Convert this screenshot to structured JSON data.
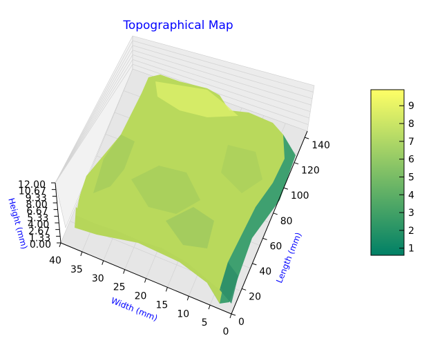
{
  "chart_data": {
    "type": "surface3d",
    "title": "Topographical Map",
    "title_color": "#0000ff",
    "axis_label_color": "#0000ff",
    "colormap": "summer",
    "colormap_colors": [
      "#008066",
      "#ffff66"
    ],
    "x_axis": {
      "label": "Length (mm)",
      "range": [
        0,
        145
      ],
      "ticks": [
        0,
        20,
        40,
        60,
        80,
        100,
        120,
        140
      ],
      "tick_labels": [
        "0",
        "20",
        "40",
        "60",
        "80",
        "100",
        "120",
        "140"
      ]
    },
    "y_axis": {
      "label": "Width (mm)",
      "range": [
        0,
        40
      ],
      "ticks": [
        0,
        5,
        10,
        15,
        20,
        25,
        30,
        35,
        40
      ],
      "tick_labels": [
        "0",
        "5",
        "10",
        "15",
        "20",
        "25",
        "30",
        "35",
        "40"
      ]
    },
    "z_axis": {
      "label": "Height (mm)",
      "range": [
        0,
        12
      ],
      "ticks": [
        0,
        1.33,
        2.67,
        4.0,
        5.33,
        6.67,
        8.0,
        9.33,
        10.67,
        12.0
      ],
      "tick_labels": [
        "0.00",
        "1.33",
        "2.67",
        "4.00",
        "5.33",
        "6.67",
        "8.00",
        "9.33",
        "10.67",
        "12.00"
      ]
    },
    "surface": {
      "approx_height_range": [
        1,
        9.8
      ],
      "typical_height": 7
    },
    "colorbar": {
      "range": [
        0.6,
        9.9
      ],
      "ticks": [
        1,
        2,
        3,
        4,
        5,
        6,
        7,
        8,
        9
      ],
      "tick_labels": [
        "1",
        "2",
        "3",
        "4",
        "5",
        "6",
        "7",
        "8",
        "9"
      ]
    },
    "grid": true
  }
}
